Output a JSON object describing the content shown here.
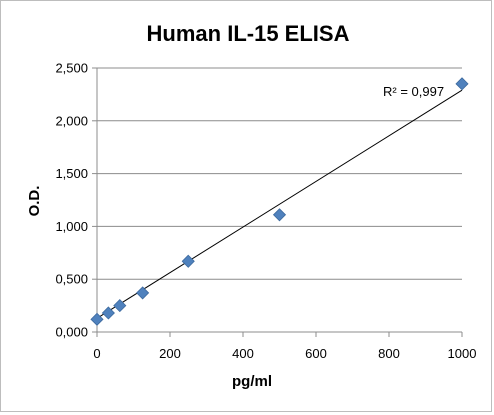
{
  "chart_data": {
    "type": "scatter",
    "title": "Human IL-15 ELISA",
    "xlabel": "pg/ml",
    "ylabel": "O.D.",
    "xlim": [
      0,
      1000
    ],
    "ylim": [
      0,
      2.5
    ],
    "x_ticks": [
      0,
      200,
      400,
      600,
      800,
      1000
    ],
    "x_tick_labels": [
      "0",
      "200",
      "400",
      "600",
      "800",
      "1000"
    ],
    "y_ticks": [
      0,
      0.5,
      1.0,
      1.5,
      2.0,
      2.5
    ],
    "y_tick_labels": [
      "0,000",
      "0,500",
      "1,000",
      "1,500",
      "2,000",
      "2,500"
    ],
    "grid": "horizontal",
    "legend": "none",
    "marker": "diamond",
    "marker_color": "#4f81bd",
    "trendline": {
      "type": "linear",
      "x": [
        0,
        1000
      ],
      "y": [
        0.13,
        2.29
      ]
    },
    "annotation": "R² = 0,997",
    "points": [
      {
        "x": 0,
        "y": 0.12
      },
      {
        "x": 31.25,
        "y": 0.18
      },
      {
        "x": 62.5,
        "y": 0.25
      },
      {
        "x": 125,
        "y": 0.37
      },
      {
        "x": 250,
        "y": 0.67
      },
      {
        "x": 500,
        "y": 1.11
      },
      {
        "x": 1000,
        "y": 2.35
      }
    ]
  }
}
